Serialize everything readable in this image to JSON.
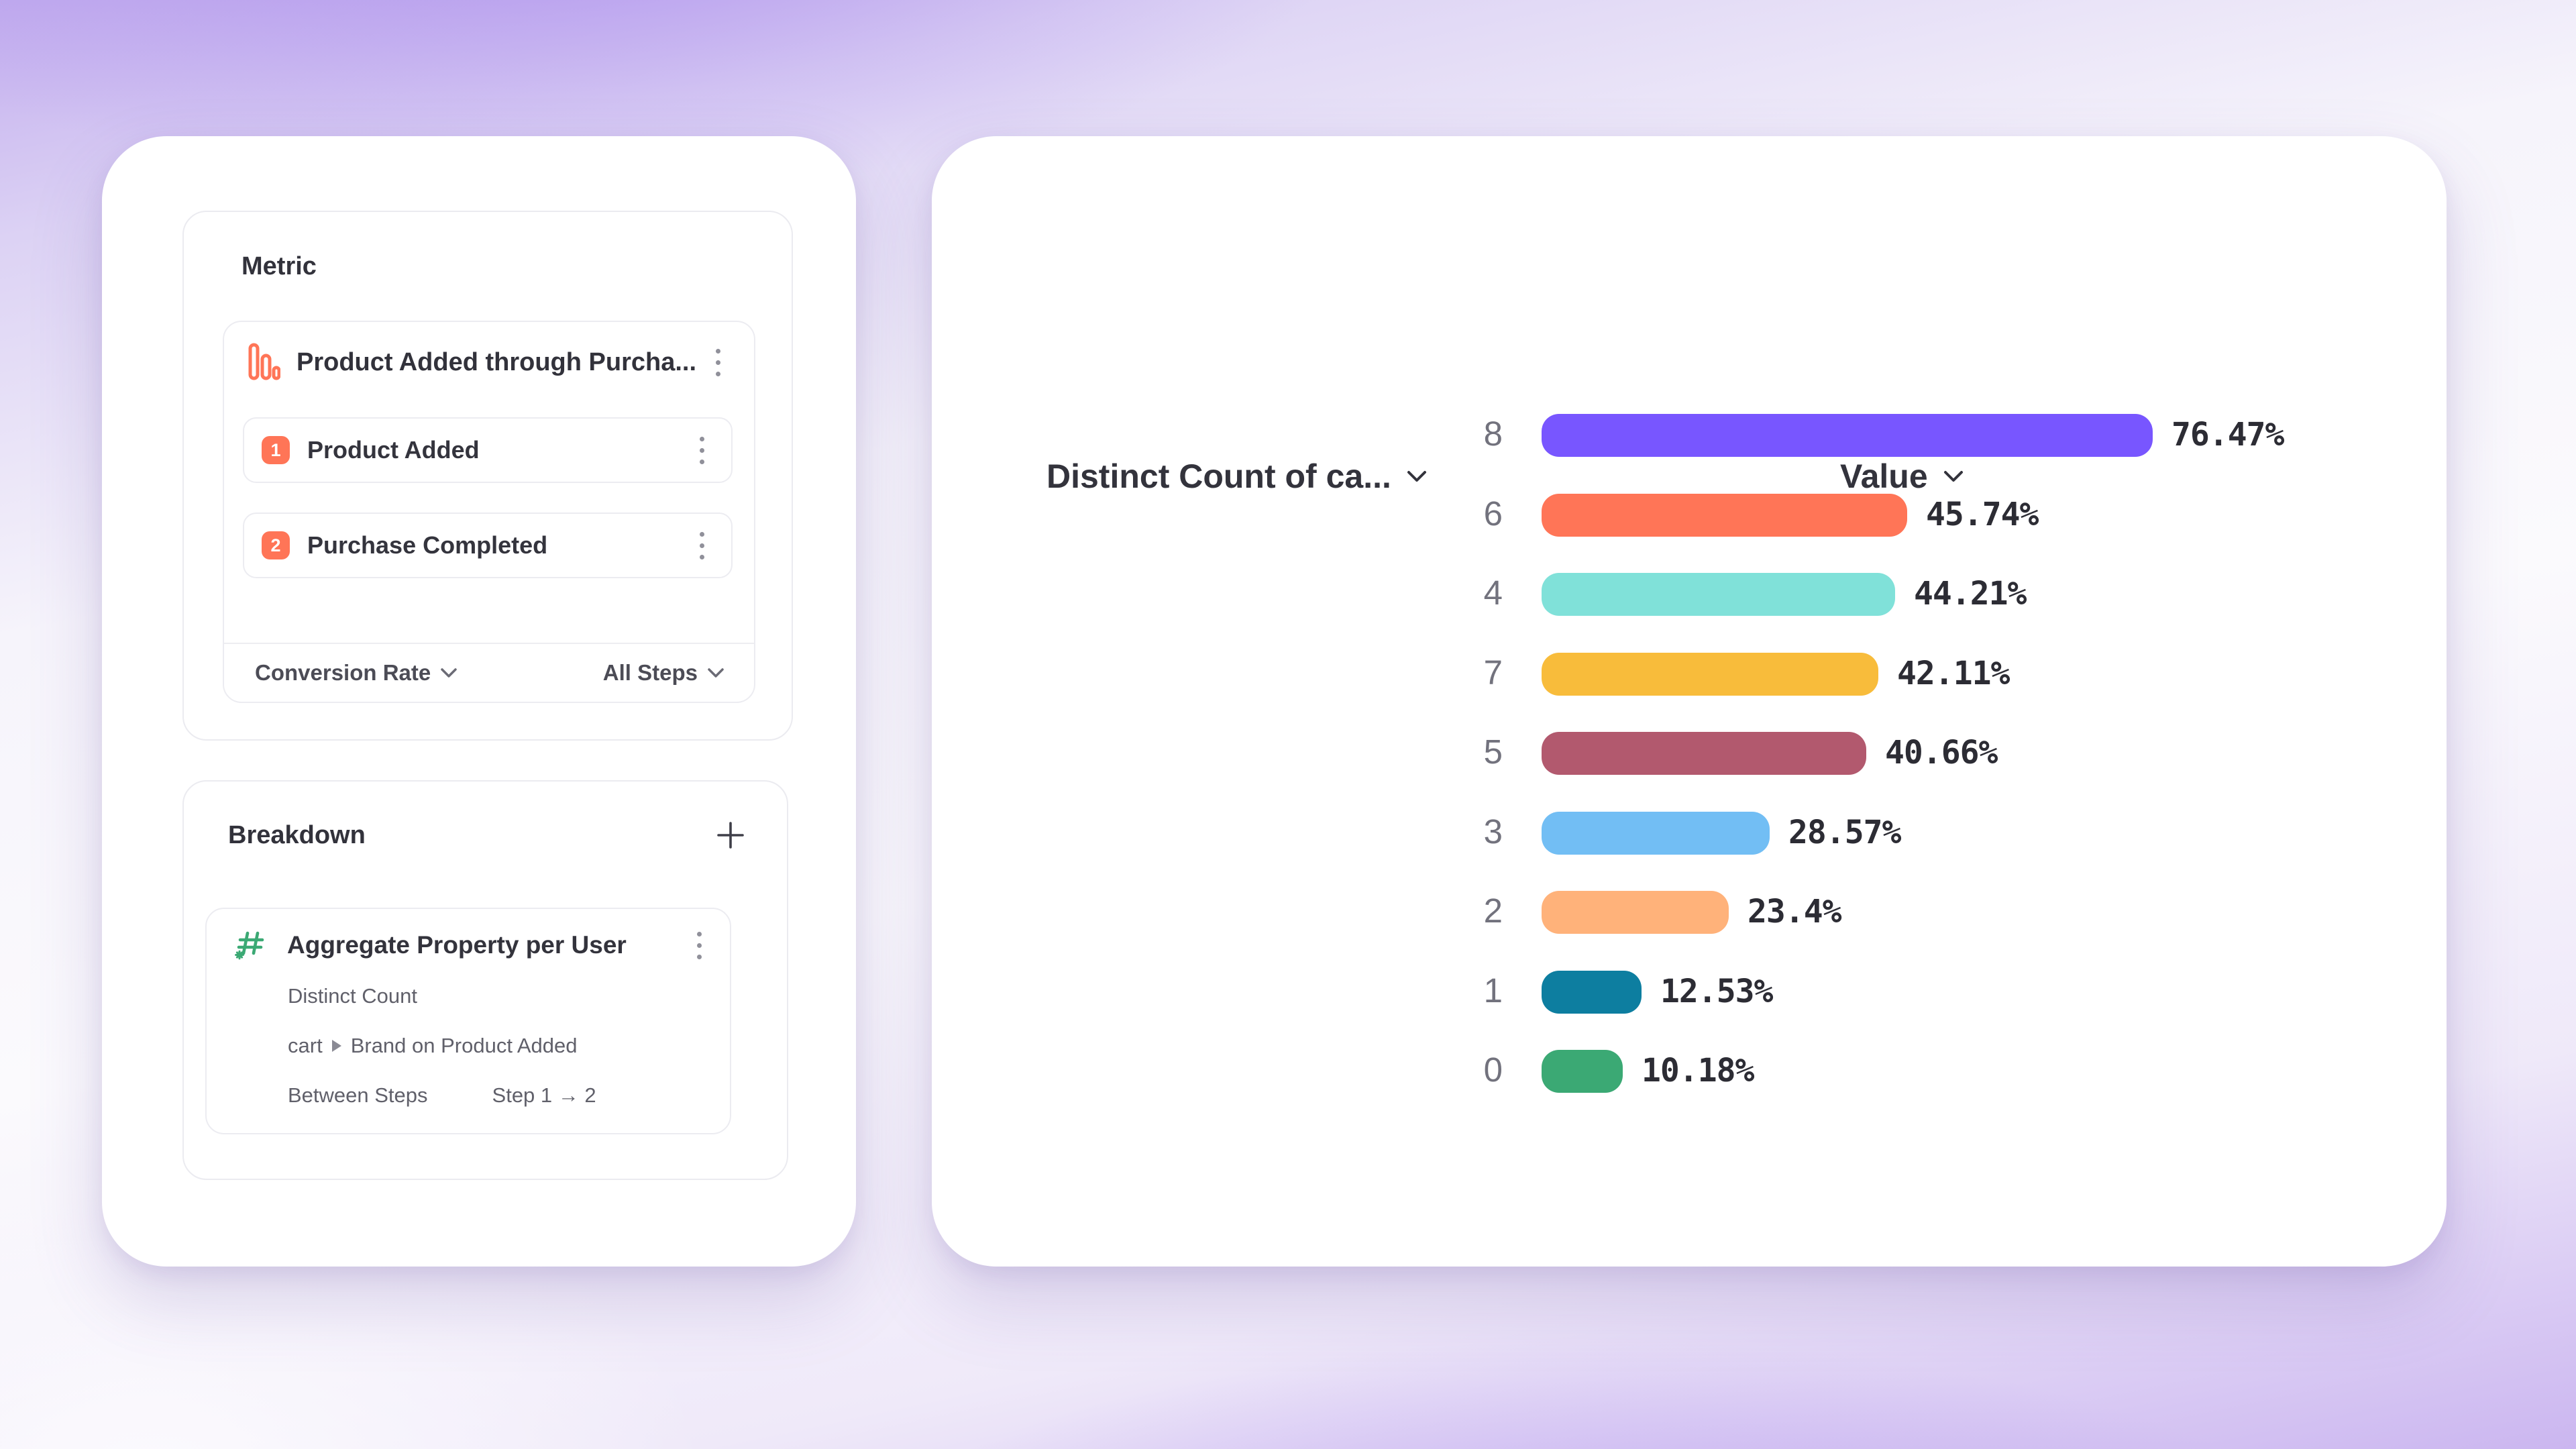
{
  "theme": {
    "accent_orange": "#FF7557",
    "accent_green": "#3BA974",
    "card_border": "#ebebf0",
    "text_dark": "#32323b",
    "text_medium": "#60606a",
    "bg_purple": "#c2adee"
  },
  "left_panel": {
    "metric": {
      "title": "Metric",
      "funnel": {
        "name": "Product Added through Purcha...",
        "steps": [
          {
            "index": "1",
            "label": "Product Added"
          },
          {
            "index": "2",
            "label": "Purchase Completed"
          }
        ],
        "footer": {
          "measure": "Conversion Rate",
          "steps_filter": "All Steps"
        }
      }
    },
    "breakdown": {
      "title": "Breakdown",
      "add_button": "+",
      "property": {
        "name": "Aggregate Property per User",
        "aggregation": "Distinct Count",
        "path_parent": "cart",
        "path_child": "Brand on Product Added",
        "scope_label": "Between Steps",
        "scope_value": "Step 1 → 2"
      }
    }
  },
  "chart": {
    "left_header": "Distinct Count of ca...",
    "right_header": "Value"
  },
  "chart_data": {
    "type": "bar",
    "orientation": "horizontal",
    "title": "Conversion rate by Distinct Count of cart Brand",
    "categories": [
      "8",
      "6",
      "4",
      "7",
      "5",
      "3",
      "2",
      "1",
      "0"
    ],
    "values": [
      76.47,
      45.74,
      44.21,
      42.11,
      40.66,
      28.57,
      23.4,
      12.53,
      10.18
    ],
    "value_labels": [
      "76.47%",
      "45.74%",
      "44.21%",
      "42.11%",
      "40.66%",
      "28.57%",
      "23.4%",
      "12.53%",
      "10.18%"
    ],
    "bar_colors": [
      "#7856FF",
      "#FF7557",
      "#80E1D9",
      "#F8BC3B",
      "#B2596E",
      "#72BEF4",
      "#FFB27A",
      "#0D7EA0",
      "#3BA974"
    ],
    "unit": "%",
    "xlim": [
      0,
      80
    ],
    "grid": false,
    "legend": false
  }
}
